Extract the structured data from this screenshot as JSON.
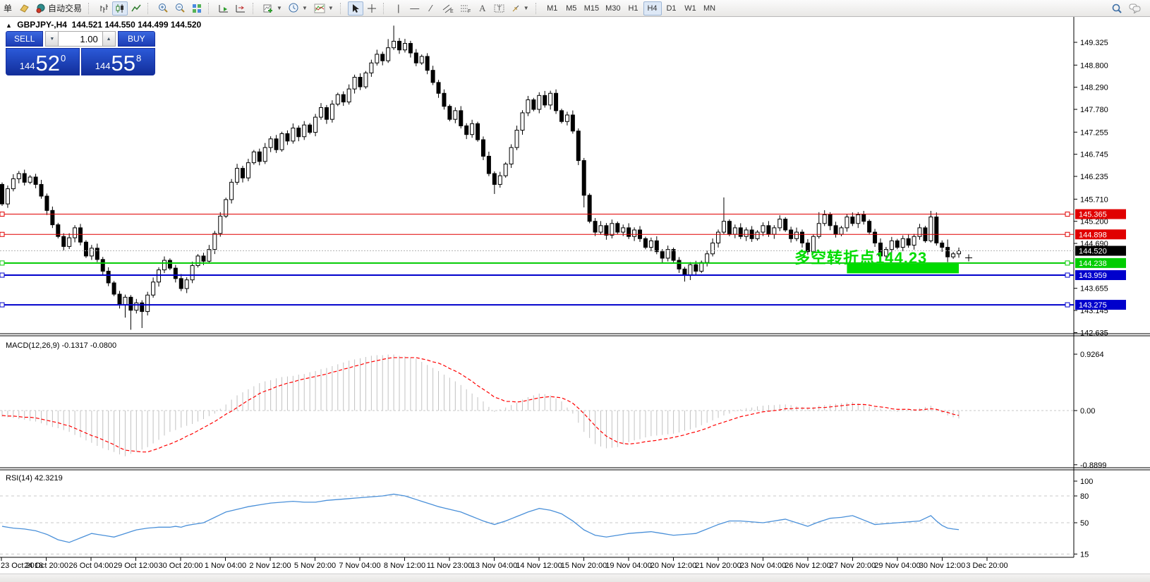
{
  "toolbar": {
    "new_order_label": "单",
    "autotrading_label": "自动交易",
    "timeframes": [
      "M1",
      "M5",
      "M15",
      "M30",
      "H1",
      "H4",
      "D1",
      "W1",
      "MN"
    ],
    "active_timeframe": "H4",
    "icon_names": [
      "metaeditor-icon",
      "autotrading-icon",
      "bar-chart-icon",
      "candlestick-chart-icon",
      "line-chart-icon",
      "zoom-in-icon",
      "zoom-out-icon",
      "tile-windows-icon",
      "auto-scroll-icon",
      "chart-shift-icon",
      "new-chart-icon",
      "profiles-clock-icon",
      "indicators-icon",
      "cursor-icon",
      "crosshair-icon",
      "vertical-line-icon",
      "horizontal-line-icon",
      "trendline-icon",
      "equidistant-channel-icon",
      "fibonacci-icon",
      "text-icon",
      "text-label-icon",
      "arrows-icon",
      "search-icon",
      "chat-icon"
    ]
  },
  "info_bar": {
    "symbol_period": "GBPJPY-,H4",
    "open": "144.521",
    "high": "144.550",
    "low": "144.499",
    "close": "144.520"
  },
  "trade_panel": {
    "sell_label": "SELL",
    "buy_label": "BUY",
    "volume": "1.00",
    "sell_price": {
      "big": "144",
      "pips": "52",
      "pt": "0"
    },
    "buy_price": {
      "big": "144",
      "pips": "55",
      "pt": "8"
    }
  },
  "indicator_labels": {
    "macd": "MACD(12,26,9) -0.1317 -0.0800",
    "rsi": "RSI(14) 42.3219"
  },
  "annotation": {
    "text": "多空转折点144.23",
    "color": "#00DC00"
  },
  "price_axis": {
    "ticks": [
      "149.325",
      "148.800",
      "148.290",
      "147.780",
      "147.255",
      "146.745",
      "146.235",
      "145.710",
      "145.200",
      "144.690",
      "143.655",
      "143.145",
      "142.635"
    ],
    "tags": [
      {
        "value": "145.365",
        "color": "#E00000"
      },
      {
        "value": "144.898",
        "color": "#E00000"
      },
      {
        "value": "144.520",
        "color": "#000000"
      },
      {
        "value": "144.238",
        "color": "#00CC00"
      },
      {
        "value": "143.959",
        "color": "#0000CC"
      },
      {
        "value": "143.275",
        "color": "#0000CC"
      }
    ]
  },
  "macd_axis": [
    "0.9264",
    "0.00",
    "-0.8899"
  ],
  "rsi_axis": [
    "100",
    "80",
    "50",
    "15"
  ],
  "time_axis": [
    "23 Oct 2018",
    "24 Oct 20:00",
    "26 Oct 04:00",
    "29 Oct 12:00",
    "30 Oct 20:00",
    "1 Nov 04:00",
    "2 Nov 12:00",
    "5 Nov 20:00",
    "7 Nov 04:00",
    "8 Nov 12:00",
    "11 Nov 23:00",
    "13 Nov 04:00",
    "14 Nov 12:00",
    "15 Nov 20:00",
    "19 Nov 04:00",
    "20 Nov 12:00",
    "21 Nov 20:00",
    "23 Nov 04:00",
    "26 Nov 12:00",
    "27 Nov 20:00",
    "29 Nov 04:00",
    "30 Nov 12:00",
    "3 Dec 20:00"
  ],
  "chart_data": {
    "type": "candlestick",
    "symbol": "GBPJPY-",
    "timeframe": "H4",
    "ohlc_info": {
      "open": 144.521,
      "high": 144.55,
      "low": 144.499,
      "close": 144.52
    },
    "price_range_visible": [
      142.635,
      149.325
    ],
    "candles": {
      "first_open": 146.05,
      "wick_default": 0.09,
      "closes": [
        145.6,
        145.95,
        146.18,
        146.3,
        146.1,
        146.22,
        146.05,
        145.78,
        145.45,
        145.12,
        144.85,
        144.62,
        144.82,
        145.05,
        144.72,
        144.4,
        144.58,
        144.32,
        144.05,
        143.78,
        143.52,
        143.28,
        143.45,
        143.15,
        143.32,
        143.12,
        143.5,
        143.8,
        144.08,
        144.3,
        144.12,
        143.88,
        143.65,
        143.85,
        144.18,
        144.4,
        144.28,
        144.55,
        144.92,
        145.32,
        145.7,
        146.1,
        146.42,
        146.2,
        146.55,
        146.8,
        146.58,
        146.9,
        147.1,
        146.85,
        147.22,
        147.05,
        147.35,
        147.15,
        147.42,
        147.25,
        147.6,
        147.82,
        147.55,
        147.9,
        148.12,
        147.95,
        148.25,
        148.52,
        148.3,
        148.62,
        148.85,
        149.05,
        148.9,
        149.2,
        149.35,
        149.15,
        149.3,
        149.08,
        148.85,
        149.0,
        148.68,
        148.4,
        148.15,
        147.85,
        147.55,
        147.75,
        147.4,
        147.2,
        147.45,
        147.08,
        146.7,
        146.3,
        146.05,
        146.25,
        146.52,
        146.9,
        147.3,
        147.7,
        148.0,
        147.78,
        148.1,
        147.88,
        148.15,
        147.75,
        147.5,
        147.65,
        147.28,
        146.6,
        145.8,
        145.2,
        144.95,
        145.1,
        144.88,
        145.15,
        144.95,
        145.05,
        144.85,
        145.0,
        144.8,
        144.6,
        144.75,
        144.5,
        144.35,
        144.55,
        144.3,
        144.1,
        143.95,
        144.2,
        144.05,
        144.25,
        144.45,
        144.7,
        144.95,
        145.2,
        144.9,
        145.05,
        144.85,
        145.0,
        144.8,
        144.95,
        145.1,
        144.9,
        145.05,
        145.25,
        145.0,
        144.8,
        144.95,
        144.7,
        144.5,
        144.85,
        145.15,
        145.35,
        145.1,
        144.9,
        145.05,
        145.3,
        145.15,
        145.35,
        145.2,
        144.95,
        144.7,
        144.4,
        144.55,
        144.75,
        144.6,
        144.8,
        144.65,
        144.85,
        145.05,
        144.75,
        145.3,
        144.7,
        144.6,
        144.38,
        144.45,
        144.52
      ],
      "wick_overrides": {
        "22": [
          0.06,
          0.3
        ],
        "23": [
          0.05,
          0.45
        ],
        "25": [
          0.06,
          0.38
        ],
        "69": [
          0.2,
          0.05
        ],
        "70": [
          0.36,
          0.05
        ],
        "88": [
          0.05,
          0.22
        ],
        "104": [
          0.06,
          0.28
        ],
        "122": [
          0.05,
          0.14
        ],
        "129": [
          0.55,
          0.05
        ],
        "146": [
          0.26,
          0.05
        ],
        "166": [
          0.14,
          0.04
        ],
        "169": [
          0.18,
          0.12
        ]
      }
    },
    "hlines": [
      {
        "price": 145.365,
        "color": "#E00000",
        "width": 1
      },
      {
        "price": 144.898,
        "color": "#E00000",
        "width": 1
      },
      {
        "price": 144.238,
        "color": "#00CC00",
        "width": 2
      },
      {
        "price": 143.959,
        "color": "#0000CC",
        "width": 2
      },
      {
        "price": 143.275,
        "color": "#0000CC",
        "width": 2
      }
    ],
    "current_price": 144.52,
    "green_zone": {
      "price_from": 144.0,
      "price_to": 144.22,
      "from_index": 151,
      "to_index": 171
    },
    "macd": {
      "params": "12,26,9",
      "main_value": -0.1317,
      "signal_value": -0.08,
      "scale": [
        -0.8899,
        0.9264
      ],
      "hist": [
        -0.1,
        -0.11,
        -0.12,
        -0.14,
        -0.15,
        -0.17,
        -0.18,
        -0.21,
        -0.24,
        -0.27,
        -0.29,
        -0.32,
        -0.35,
        -0.4,
        -0.44,
        -0.49,
        -0.53,
        -0.58,
        -0.62,
        -0.65,
        -0.68,
        -0.72,
        -0.75,
        -0.71,
        -0.68,
        -0.64,
        -0.6,
        -0.54,
        -0.48,
        -0.41,
        -0.35,
        -0.32,
        -0.28,
        -0.25,
        -0.22,
        -0.18,
        -0.14,
        -0.09,
        -0.05,
        0.03,
        0.1,
        0.18,
        0.25,
        0.3,
        0.35,
        0.4,
        0.45,
        0.48,
        0.5,
        0.53,
        0.55,
        0.56,
        0.57,
        0.59,
        0.6,
        0.63,
        0.65,
        0.68,
        0.7,
        0.73,
        0.76,
        0.79,
        0.82,
        0.84,
        0.86,
        0.88,
        0.9,
        0.91,
        0.91,
        0.92,
        0.92,
        0.9,
        0.89,
        0.87,
        0.85,
        0.8,
        0.75,
        0.7,
        0.65,
        0.59,
        0.54,
        0.48,
        0.42,
        0.35,
        0.28,
        0.22,
        0.15,
        0.06,
        -0.02,
        0.02,
        0.05,
        0.09,
        0.13,
        0.18,
        0.22,
        0.25,
        0.28,
        0.27,
        0.25,
        0.2,
        0.15,
        0.05,
        -0.05,
        -0.2,
        -0.35,
        -0.45,
        -0.55,
        -0.59,
        -0.62,
        -0.61,
        -0.6,
        -0.56,
        -0.52,
        -0.49,
        -0.47,
        -0.44,
        -0.42,
        -0.41,
        -0.4,
        -0.39,
        -0.38,
        -0.36,
        -0.33,
        -0.31,
        -0.28,
        -0.24,
        -0.2,
        -0.16,
        -0.12,
        -0.08,
        -0.05,
        -0.01,
        0.02,
        0.04,
        0.05,
        0.07,
        0.08,
        0.09,
        0.09,
        0.1,
        0.1,
        0.09,
        0.07,
        0.06,
        0.05,
        0.06,
        0.08,
        0.09,
        0.1,
        0.11,
        0.12,
        0.13,
        0.14,
        0.12,
        0.1,
        0.07,
        0.05,
        0.03,
        0.01,
        -0.01,
        -0.02,
        0.0,
        0.01,
        0.02,
        0.04,
        0.06,
        0.08,
        0.02,
        -0.04,
        -0.08,
        -0.11,
        -0.13
      ],
      "signal": [
        -0.08,
        -0.09,
        -0.09,
        -0.1,
        -0.11,
        -0.11,
        -0.12,
        -0.14,
        -0.16,
        -0.18,
        -0.2,
        -0.23,
        -0.25,
        -0.29,
        -0.33,
        -0.37,
        -0.41,
        -0.44,
        -0.48,
        -0.52,
        -0.56,
        -0.61,
        -0.65,
        -0.66,
        -0.67,
        -0.68,
        -0.68,
        -0.65,
        -0.62,
        -0.58,
        -0.55,
        -0.51,
        -0.47,
        -0.42,
        -0.38,
        -0.33,
        -0.28,
        -0.23,
        -0.18,
        -0.12,
        -0.06,
        -0.01,
        0.05,
        0.11,
        0.17,
        0.22,
        0.28,
        0.32,
        0.35,
        0.39,
        0.42,
        0.45,
        0.47,
        0.5,
        0.52,
        0.54,
        0.56,
        0.58,
        0.6,
        0.63,
        0.65,
        0.68,
        0.7,
        0.73,
        0.75,
        0.78,
        0.8,
        0.82,
        0.84,
        0.86,
        0.87,
        0.87,
        0.87,
        0.87,
        0.87,
        0.85,
        0.83,
        0.8,
        0.78,
        0.74,
        0.69,
        0.65,
        0.6,
        0.54,
        0.48,
        0.41,
        0.35,
        0.29,
        0.22,
        0.19,
        0.15,
        0.15,
        0.14,
        0.15,
        0.17,
        0.19,
        0.21,
        0.22,
        0.23,
        0.22,
        0.21,
        0.17,
        0.12,
        0.04,
        -0.05,
        -0.15,
        -0.25,
        -0.34,
        -0.42,
        -0.47,
        -0.52,
        -0.54,
        -0.55,
        -0.54,
        -0.53,
        -0.51,
        -0.5,
        -0.49,
        -0.47,
        -0.46,
        -0.44,
        -0.42,
        -0.4,
        -0.37,
        -0.35,
        -0.32,
        -0.29,
        -0.25,
        -0.22,
        -0.19,
        -0.16,
        -0.13,
        -0.1,
        -0.08,
        -0.06,
        -0.04,
        -0.02,
        -0.01,
        0.0,
        0.01,
        0.03,
        0.03,
        0.04,
        0.04,
        0.04,
        0.04,
        0.05,
        0.05,
        0.06,
        0.07,
        0.08,
        0.09,
        0.1,
        0.1,
        0.1,
        0.09,
        0.07,
        0.06,
        0.05,
        0.03,
        0.02,
        0.02,
        0.02,
        0.01,
        0.01,
        0.02,
        0.03,
        0.02,
        -0.01,
        -0.03,
        -0.06,
        -0.08
      ]
    },
    "rsi": {
      "period": 14,
      "value": 42.3219,
      "levels": [
        80,
        50,
        15
      ],
      "range": [
        0,
        100
      ],
      "series": [
        46,
        45,
        44,
        43.5,
        43,
        42,
        41,
        39,
        37,
        34,
        31,
        29.5,
        28,
        30.5,
        33,
        35.5,
        38,
        37,
        36,
        35,
        34,
        36,
        38,
        40,
        42,
        43,
        44,
        44.5,
        45,
        45,
        45,
        46,
        45,
        47,
        48,
        49,
        50,
        53,
        56,
        59,
        62,
        63.5,
        65,
        66.5,
        68,
        69,
        70,
        71,
        72,
        72.5,
        73,
        73.5,
        74,
        73.5,
        73,
        73,
        73,
        74,
        75,
        75.5,
        76,
        76.5,
        77,
        77.5,
        78,
        78.5,
        79,
        79.5,
        80,
        81,
        82,
        81,
        80,
        78,
        76,
        74,
        72,
        70,
        68,
        66.5,
        65,
        63.5,
        62,
        59.5,
        57,
        54.5,
        52,
        50,
        48,
        50,
        52,
        54.5,
        57,
        59.5,
        62,
        64,
        66,
        65,
        64,
        62,
        60,
        56,
        52,
        47,
        42,
        39,
        36,
        35,
        34,
        35,
        36,
        37,
        38,
        38.5,
        39,
        39.5,
        40,
        39,
        38,
        37,
        36,
        36.5,
        37,
        37.5,
        38,
        40.5,
        43,
        45.5,
        48,
        50,
        52,
        52,
        52,
        51.5,
        51,
        50.5,
        50,
        51,
        52,
        53,
        54,
        52,
        50,
        48,
        46,
        48.5,
        51,
        53,
        55,
        55.5,
        56,
        57,
        58,
        55.5,
        53,
        50.5,
        48,
        48.5,
        49,
        49.5,
        50,
        50.5,
        51,
        51.5,
        52,
        55,
        58,
        52,
        47,
        44,
        43,
        42.32
      ]
    }
  }
}
